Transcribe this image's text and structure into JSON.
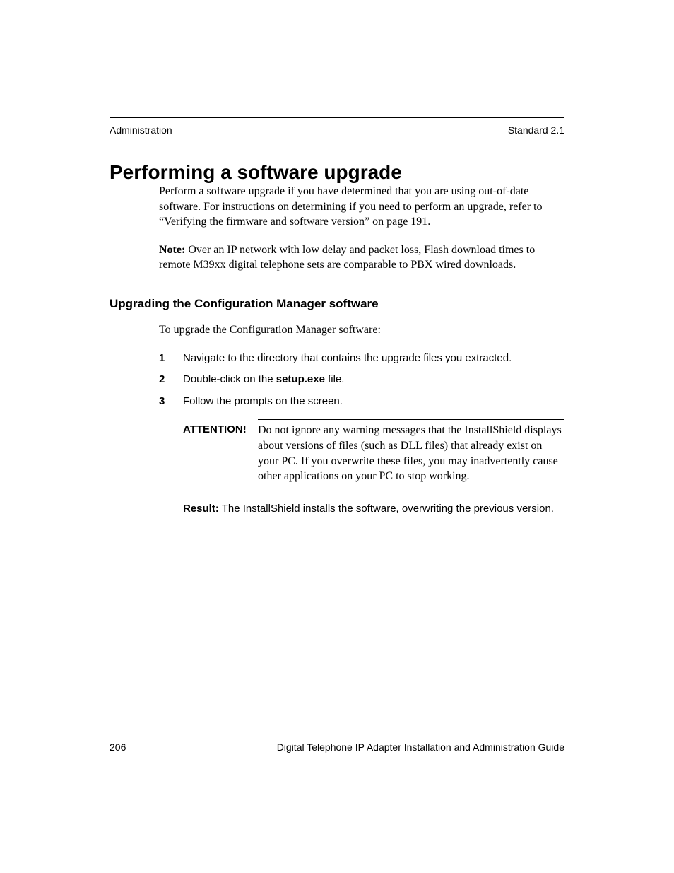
{
  "header": {
    "left": "Administration",
    "right": "Standard 2.1"
  },
  "title": "Performing a software upgrade",
  "paragraphs": {
    "p1": "Perform a software upgrade if you have determined that you are using out-of-date software. For instructions on determining if you need to perform an upgrade, refer to “Verifying the firmware and software version” on page 191.",
    "note_label": "Note:",
    "note_body": " Over an IP network with low delay and packet loss, Flash download times to remote M39xx digital telephone sets are comparable to PBX wired downloads."
  },
  "subhead": "Upgrading the Configuration Manager software",
  "intro": "To upgrade the Configuration Manager software:",
  "steps": [
    {
      "n": "1",
      "text_pre": "Navigate to the directory that contains the upgrade files you extracted.",
      "bold": "",
      "text_post": ""
    },
    {
      "n": "2",
      "text_pre": "Double-click on the ",
      "bold": "setup.exe",
      "text_post": " file."
    },
    {
      "n": "3",
      "text_pre": "Follow the prompts on the screen.",
      "bold": "",
      "text_post": ""
    }
  ],
  "attention": {
    "label": "ATTENTION!",
    "body": "Do not ignore any warning messages that the InstallShield displays about versions of files (such as DLL files) that already exist on your PC. If you overwrite these files, you may inadvertently cause other applications on your PC to stop working."
  },
  "result": {
    "label": "Result:",
    "body": " The InstallShield installs the software, overwriting the previous version."
  },
  "footer": {
    "page": "206",
    "title": "Digital Telephone IP Adapter Installation and Administration Guide"
  }
}
